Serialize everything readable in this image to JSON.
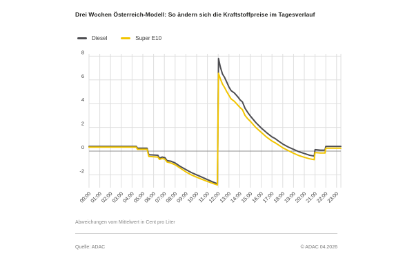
{
  "header": {
    "title": "Drei Wochen Österreich-Modell: So ändern sich die Kraftstoffpreise im Tagesverlauf"
  },
  "legend": [
    {
      "label": "Diesel",
      "color": "#4e4e52"
    },
    {
      "label": "Super E10",
      "color": "#f2c500"
    }
  ],
  "chart_data": {
    "type": "line",
    "title": "Drei Wochen Österreich-Modell: So ändern sich die Kraftstoffpreise im Tagesverlauf",
    "note": "Abweichungen vom Mittelwert in Cent pro Liter",
    "x_unit": "hour of day",
    "x_tick_labels": [
      "00:00",
      "01:00",
      "02:00",
      "03:00",
      "04:00",
      "05:00",
      "06:00",
      "07:00",
      "08:00",
      "09:00",
      "10:00",
      "11:00",
      "12:00",
      "13:00",
      "14:00",
      "15:00",
      "16:00",
      "17:00",
      "18:00",
      "19:00",
      "20:00",
      "21:00",
      "22:00",
      "23:00"
    ],
    "yticks": [
      -2,
      0,
      2,
      4,
      6,
      8
    ],
    "ylim": [
      -3.1,
      8.2
    ],
    "grid": true,
    "zero_line": true,
    "legend_position": "top-left",
    "colors": {
      "grid": "#dedede",
      "zero_line": "#8c8c8c",
      "tick_text": "#3c3c3c"
    },
    "series": [
      {
        "name": "Diesel",
        "color": "#4e4e52",
        "points": [
          [
            0,
            0.4
          ],
          [
            4.4,
            0.4
          ],
          [
            4.5,
            0.25
          ],
          [
            5.4,
            0.25
          ],
          [
            5.55,
            -0.3
          ],
          [
            6.4,
            -0.35
          ],
          [
            6.55,
            -0.6
          ],
          [
            6.8,
            -0.5
          ],
          [
            7.05,
            -0.55
          ],
          [
            7.25,
            -0.8
          ],
          [
            7.6,
            -0.85
          ],
          [
            8,
            -1
          ],
          [
            8.5,
            -1.3
          ],
          [
            9,
            -1.55
          ],
          [
            9.5,
            -1.8
          ],
          [
            10,
            -2
          ],
          [
            10.5,
            -2.2
          ],
          [
            11,
            -2.4
          ],
          [
            11.5,
            -2.6
          ],
          [
            11.93,
            -2.75
          ],
          [
            12.03,
            7.8
          ],
          [
            12.2,
            7.1
          ],
          [
            12.4,
            6.5
          ],
          [
            12.6,
            6.2
          ],
          [
            12.8,
            5.8
          ],
          [
            13,
            5.4
          ],
          [
            13.2,
            5.1
          ],
          [
            13.5,
            4.9
          ],
          [
            13.8,
            4.6
          ],
          [
            14.05,
            4.3
          ],
          [
            14.25,
            4.15
          ],
          [
            14.5,
            3.6
          ],
          [
            14.75,
            3.25
          ],
          [
            15,
            2.95
          ],
          [
            15.5,
            2.4
          ],
          [
            16,
            1.95
          ],
          [
            16.5,
            1.55
          ],
          [
            17,
            1.2
          ],
          [
            17.3,
            1.05
          ],
          [
            17.6,
            0.85
          ],
          [
            18,
            0.6
          ],
          [
            18.5,
            0.35
          ],
          [
            19,
            0.15
          ],
          [
            19.5,
            -0.05
          ],
          [
            20,
            -0.2
          ],
          [
            20.5,
            -0.35
          ],
          [
            20.92,
            -0.42
          ],
          [
            21,
            0.12
          ],
          [
            21.5,
            0.08
          ],
          [
            21.92,
            0.08
          ],
          [
            22,
            0.4
          ],
          [
            23.4,
            0.4
          ]
        ]
      },
      {
        "name": "Super E10",
        "color": "#f2c500",
        "points": [
          [
            0,
            0.33
          ],
          [
            4.4,
            0.33
          ],
          [
            4.5,
            0.15
          ],
          [
            5.4,
            0.15
          ],
          [
            5.55,
            -0.45
          ],
          [
            6.4,
            -0.5
          ],
          [
            6.55,
            -0.7
          ],
          [
            6.8,
            -0.62
          ],
          [
            7.05,
            -0.68
          ],
          [
            7.25,
            -0.92
          ],
          [
            7.6,
            -1
          ],
          [
            8,
            -1.15
          ],
          [
            8.5,
            -1.45
          ],
          [
            9,
            -1.75
          ],
          [
            9.5,
            -2
          ],
          [
            10,
            -2.2
          ],
          [
            10.5,
            -2.38
          ],
          [
            11,
            -2.55
          ],
          [
            11.5,
            -2.72
          ],
          [
            11.93,
            -2.85
          ],
          [
            12.03,
            6.55
          ],
          [
            12.2,
            6.1
          ],
          [
            12.4,
            5.65
          ],
          [
            12.6,
            5.35
          ],
          [
            12.8,
            5
          ],
          [
            13,
            4.7
          ],
          [
            13.2,
            4.4
          ],
          [
            13.5,
            4.2
          ],
          [
            13.8,
            3.9
          ],
          [
            14.05,
            3.65
          ],
          [
            14.25,
            3.5
          ],
          [
            14.5,
            3
          ],
          [
            14.75,
            2.72
          ],
          [
            15,
            2.5
          ],
          [
            15.5,
            1.98
          ],
          [
            16,
            1.58
          ],
          [
            16.5,
            1.18
          ],
          [
            17,
            0.85
          ],
          [
            17.3,
            0.7
          ],
          [
            17.6,
            0.52
          ],
          [
            18,
            0.28
          ],
          [
            18.5,
            0.05
          ],
          [
            19,
            -0.18
          ],
          [
            19.5,
            -0.38
          ],
          [
            20,
            -0.52
          ],
          [
            20.5,
            -0.65
          ],
          [
            20.92,
            -0.72
          ],
          [
            21,
            -0.12
          ],
          [
            21.5,
            -0.16
          ],
          [
            21.92,
            -0.16
          ],
          [
            22,
            0.25
          ],
          [
            23.4,
            0.25
          ]
        ]
      }
    ]
  },
  "footer": {
    "source": "Quelle: ADAC",
    "copyright": "© ADAC 04.2026"
  }
}
